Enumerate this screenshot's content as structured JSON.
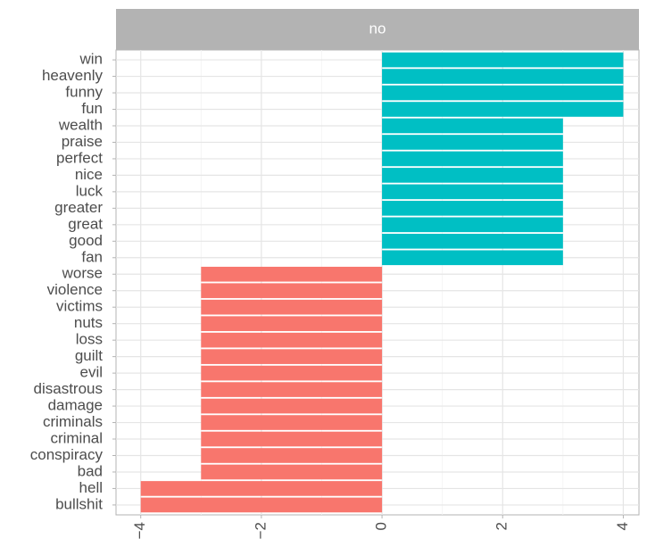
{
  "chart_data": {
    "type": "bar",
    "orientation": "horizontal",
    "facet_label": "no",
    "categories": [
      "win",
      "heavenly",
      "funny",
      "fun",
      "wealth",
      "praise",
      "perfect",
      "nice",
      "luck",
      "greater",
      "great",
      "good",
      "fan",
      "worse",
      "violence",
      "victims",
      "nuts",
      "loss",
      "guilt",
      "evil",
      "disastrous",
      "damage",
      "criminals",
      "criminal",
      "conspiracy",
      "bad",
      "hell",
      "bullshit"
    ],
    "values": [
      4,
      4,
      4,
      4,
      3,
      3,
      3,
      3,
      3,
      3,
      3,
      3,
      3,
      -3,
      -3,
      -3,
      -3,
      -3,
      -3,
      -3,
      -3,
      -3,
      -3,
      -3,
      -3,
      -3,
      -4,
      -4
    ],
    "color_positive": "#00bfc4",
    "color_negative": "#f8766d",
    "xlim": [
      -4.41,
      4.26
    ],
    "xticks": [
      {
        "value": -4,
        "label": "−4"
      },
      {
        "value": -2,
        "label": "−2"
      },
      0,
      2,
      4
    ],
    "grid": true
  }
}
